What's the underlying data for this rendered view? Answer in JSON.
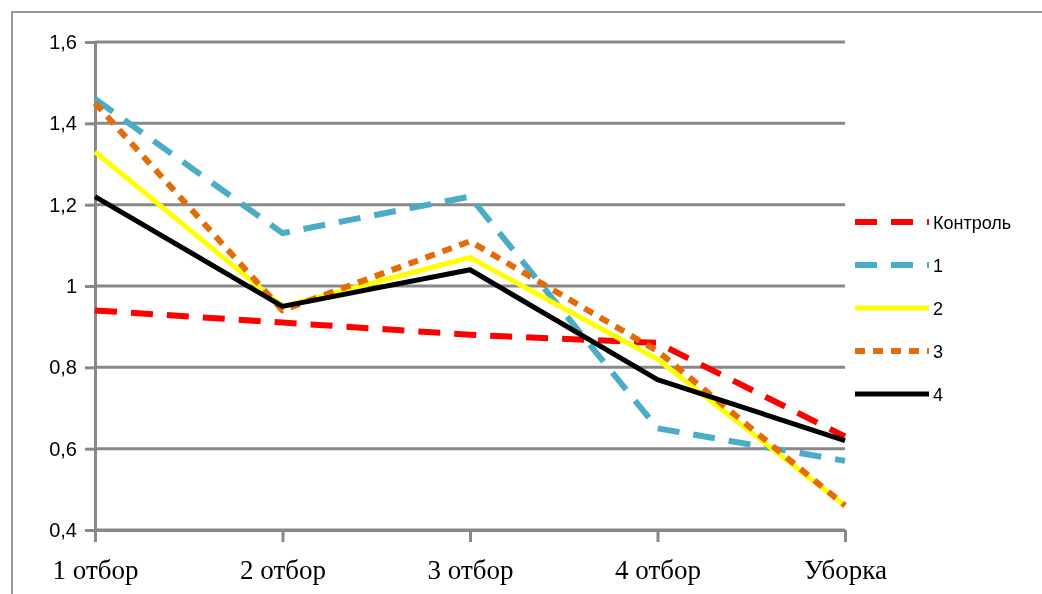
{
  "chart_data": {
    "type": "line",
    "categories": [
      "1 отбор",
      "2 отбор",
      "3 отбор",
      "4 отбор",
      "Уборка"
    ],
    "series": [
      {
        "name": "Контроль",
        "color": "#ff0000",
        "line_style": "dashed",
        "values": [
          0.94,
          0.91,
          0.88,
          0.86,
          0.63
        ]
      },
      {
        "name": "1",
        "color": "#4bacc6",
        "line_style": "dashed",
        "values": [
          1.46,
          1.13,
          1.22,
          0.65,
          0.57
        ]
      },
      {
        "name": "2",
        "color": "#ffff00",
        "line_style": "solid",
        "values": [
          1.33,
          0.95,
          1.07,
          0.82,
          0.46
        ]
      },
      {
        "name": "3",
        "color": "#e36c09",
        "line_style": "dotted",
        "values": [
          1.45,
          0.94,
          1.11,
          0.84,
          0.46
        ]
      },
      {
        "name": "4",
        "color": "#000000",
        "line_style": "solid",
        "values": [
          1.22,
          0.95,
          1.04,
          0.77,
          0.62
        ]
      }
    ],
    "ylim": [
      0.4,
      1.6
    ],
    "yticks": [
      {
        "value": 0.4,
        "label": "0,4"
      },
      {
        "value": 0.6,
        "label": "0,6"
      },
      {
        "value": 0.8,
        "label": "0,8"
      },
      1,
      {
        "value": 1.2,
        "label": "1,2"
      },
      {
        "value": 1.4,
        "label": "1,4"
      },
      {
        "value": 1.6,
        "label": "1,6"
      }
    ],
    "grid": "y",
    "legend": "right",
    "marker": "none"
  }
}
